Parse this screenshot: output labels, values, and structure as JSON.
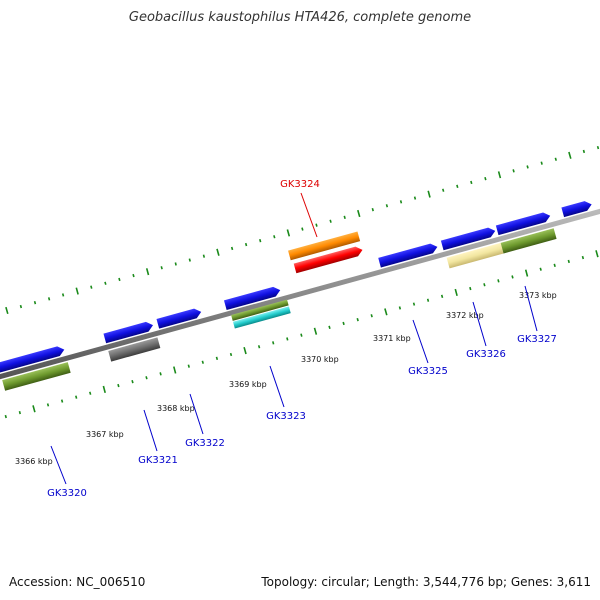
{
  "header": {
    "title": "Geobacillus kaustophilus HTA426, complete genome"
  },
  "footer": {
    "accession": "Accession: NC_006510",
    "summary": "Topology: circular; Length: 3,544,776 bp; Genes: 3,611"
  },
  "colors": {
    "backbone": "#888888",
    "tick": "#1a8a1a",
    "label_default": "#0000cc",
    "label_highlight": "#dd0000",
    "kbp_text": "#111111"
  },
  "kbp_markers": [
    "3366 kbp",
    "3367 kbp",
    "3368 kbp",
    "3369 kbp",
    "3370 kbp",
    "3371 kbp",
    "3372 kbp",
    "3373 kbp"
  ],
  "genes": [
    {
      "label": "GK3320",
      "strand": "minus",
      "color": "green",
      "highlight": false
    },
    {
      "label": "GK3321",
      "strand": "minus",
      "color": "gray",
      "highlight": false
    },
    {
      "label": "GK3322",
      "strand": "plus",
      "color": "blue",
      "highlight": false
    },
    {
      "label": "GK3323",
      "strand": "minus",
      "color": "olive+cyan",
      "highlight": false
    },
    {
      "label": "GK3324",
      "strand": "plus",
      "color": "orange+red",
      "highlight": true
    },
    {
      "label": "GK3325",
      "strand": "plus",
      "color": "blue",
      "highlight": false
    },
    {
      "label": "GK3326",
      "strand": "minus",
      "color": "pale-yellow",
      "highlight": false
    },
    {
      "label": "GK3327",
      "strand": "minus",
      "color": "green",
      "highlight": false
    }
  ]
}
